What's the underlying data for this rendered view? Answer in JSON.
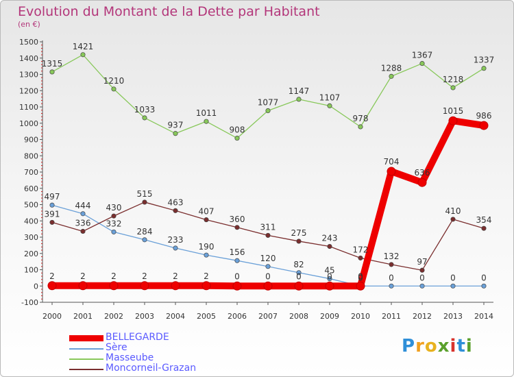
{
  "header": {
    "title": "Evolution du Montant de la Dette par Habitant",
    "subtitle": "(en €)"
  },
  "logo": {
    "letters": [
      "P",
      "r",
      "o",
      "x",
      "i",
      "t",
      "i"
    ],
    "colors": [
      "#2f8fd8",
      "#f0a020",
      "#e8b21f",
      "#5aa02c",
      "#d8322c",
      "#2f8fd8",
      "#5aa02c"
    ]
  },
  "chart_data": {
    "type": "line",
    "title": "Evolution du Montant de la Dette par Habitant",
    "subtitle": "(en €)",
    "x": [
      "2000",
      "2001",
      "2002",
      "2003",
      "2004",
      "2005",
      "2006",
      "2007",
      "2008",
      "2009",
      "2010",
      "2011",
      "2012",
      "2013",
      "2014"
    ],
    "ylim": [
      -100,
      1500
    ],
    "yticks": [
      -100,
      0,
      100,
      200,
      300,
      400,
      500,
      600,
      700,
      800,
      900,
      1000,
      1100,
      1200,
      1300,
      1400,
      1500
    ],
    "grid": false,
    "legend": "bottom-left",
    "series": [
      {
        "name": "Masseube",
        "color": "#88c85a",
        "values": [
          1315,
          1421,
          1210,
          1033,
          937,
          1011,
          908,
          1077,
          1147,
          1107,
          978,
          1288,
          1367,
          1218,
          1337
        ],
        "labels": [
          "1315",
          "1421",
          "1210",
          "1033",
          "937",
          "1011",
          "908",
          "1077",
          "1147",
          "1107",
          "978",
          "1288",
          "1367",
          "1218",
          "1337"
        ]
      },
      {
        "name": "Sère",
        "color": "#6aa0d8",
        "values": [
          497,
          444,
          332,
          284,
          233,
          190,
          156,
          120,
          82,
          45,
          0,
          0,
          0,
          0,
          0
        ],
        "labels": [
          "497",
          "444",
          "332",
          "284",
          "233",
          "190",
          "156",
          "120",
          "82",
          "45",
          "0",
          "0",
          "0",
          "0",
          "0"
        ]
      },
      {
        "name": "Moncorneil-Grazan",
        "color": "#7a2e2e",
        "values": [
          391,
          336,
          430,
          515,
          463,
          407,
          360,
          311,
          275,
          243,
          172,
          132,
          97,
          410,
          354
        ],
        "labels": [
          "391",
          "336",
          "430",
          "515",
          "463",
          "407",
          "360",
          "311",
          "275",
          "243",
          "172",
          "132",
          "97",
          "410",
          "354"
        ]
      },
      {
        "name": "BELLEGARDE",
        "color": "#ee0000",
        "values": [
          2,
          2,
          2,
          2,
          2,
          2,
          0,
          0,
          0,
          0,
          0,
          704,
          636,
          1015,
          986
        ],
        "labels": [
          "2",
          "2",
          "2",
          "2",
          "2",
          "2",
          "0",
          "0",
          "0",
          "0",
          "0",
          "704",
          "636",
          "1015",
          "986"
        ]
      }
    ]
  },
  "legend": {
    "items": [
      {
        "label": "BELLEGARDE",
        "color": "#ee0000",
        "weight": "thick"
      },
      {
        "label": "Sère",
        "color": "#6aa0d8",
        "weight": "thin"
      },
      {
        "label": "Masseube",
        "color": "#88c85a",
        "weight": "thin"
      },
      {
        "label": "Moncorneil-Grazan",
        "color": "#7a2e2e",
        "weight": "thin"
      }
    ]
  }
}
